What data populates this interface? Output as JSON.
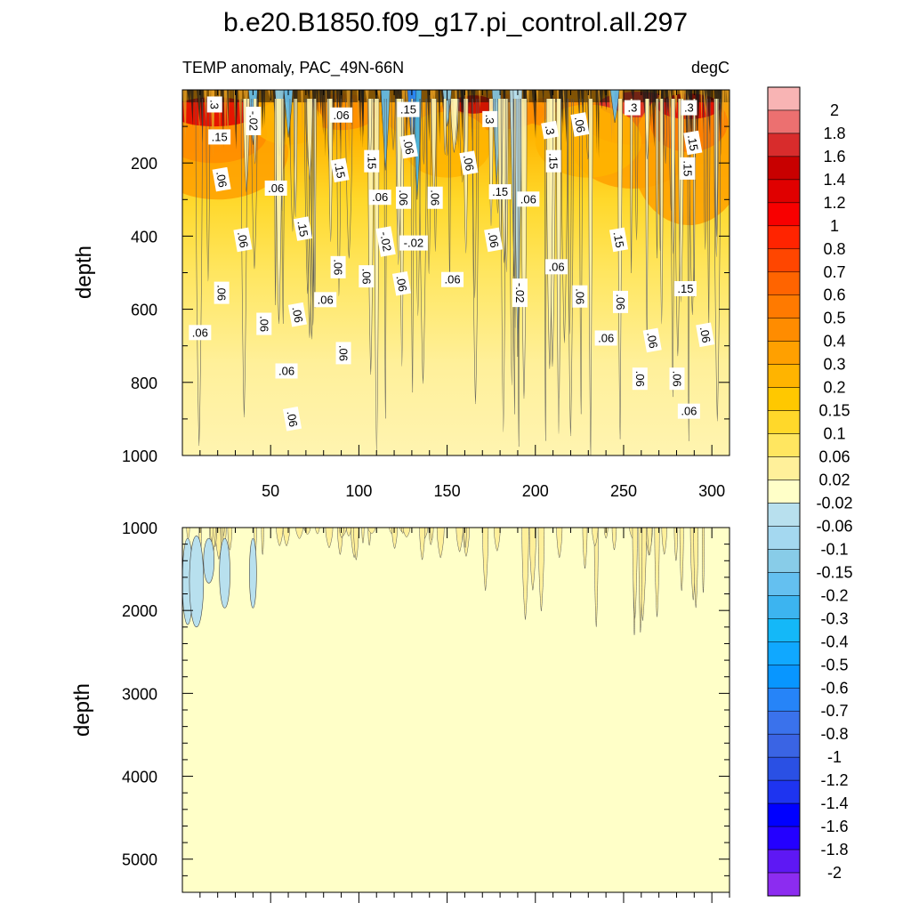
{
  "chart_data": {
    "type": "contour",
    "title": "b.e20.B1850.f09_g17.pi_control.all.297",
    "variable_label": "TEMP anomaly, PAC_49N-66N",
    "units": "degC",
    "colorbar_levels": [
      "2",
      "1.8",
      "1.6",
      "1.4",
      "1.2",
      "1",
      "0.8",
      "0.7",
      "0.6",
      "0.5",
      "0.4",
      "0.3",
      "0.2",
      "0.15",
      "0.1",
      "0.06",
      "0.02",
      "-0.02",
      "-0.06",
      "-0.1",
      "-0.15",
      "-0.2",
      "-0.3",
      "-0.4",
      "-0.5",
      "-0.6",
      "-0.7",
      "-0.8",
      "-1",
      "-1.2",
      "-1.4",
      "-1.6",
      "-1.8",
      "-2"
    ],
    "colorbar_colors": [
      "#f8b4b4",
      "#ec7070",
      "#d82c2c",
      "#c80000",
      "#e00000",
      "#f80000",
      "#ff2400",
      "#ff4600",
      "#ff6400",
      "#ff7a00",
      "#ff8c00",
      "#ffa000",
      "#ffb400",
      "#ffc800",
      "#ffd82a",
      "#ffe660",
      "#fff09a",
      "#ffffc8",
      "#b8e0ee",
      "#a4d8f0",
      "#88cce8",
      "#64c0f0",
      "#3cb4f0",
      "#14b8f8",
      "#10a8ff",
      "#0896ff",
      "#2684f8",
      "#3a72ec",
      "#3a64e4",
      "#2a50e4",
      "#1e34f0",
      "#0000ff",
      "#2400ff",
      "#5e18f4",
      "#8c2cf0"
    ],
    "panels": [
      {
        "name": "upper",
        "ylabel": "depth",
        "ylim": [
          0,
          1000
        ],
        "yticks": [
          "200",
          "400",
          "600",
          "800",
          "1000"
        ],
        "xlim": [
          0,
          310
        ],
        "xticks": [
          "50",
          "100",
          "150",
          "200",
          "250",
          "300"
        ],
        "contour_labels": [
          {
            "text": ".3",
            "x": 18,
            "y": 40
          },
          {
            "text": ".15",
            "x": 21,
            "y": 130
          },
          {
            "text": ".06",
            "x": 22,
            "y": 245
          },
          {
            "text": "-.02",
            "x": 40,
            "y": 85
          },
          {
            "text": ".06",
            "x": 53,
            "y": 270
          },
          {
            "text": ".06",
            "x": 34,
            "y": 410
          },
          {
            "text": ".06",
            "x": 22,
            "y": 555
          },
          {
            "text": ".06",
            "x": 10,
            "y": 665
          },
          {
            "text": ".15",
            "x": 68,
            "y": 380
          },
          {
            "text": ".06",
            "x": 88,
            "y": 485
          },
          {
            "text": ".06",
            "x": 81,
            "y": 575
          },
          {
            "text": ".06",
            "x": 65,
            "y": 615
          },
          {
            "text": ".06",
            "x": 46,
            "y": 640
          },
          {
            "text": ".06",
            "x": 59,
            "y": 770
          },
          {
            "text": ".06",
            "x": 62,
            "y": 900
          },
          {
            "text": ".06",
            "x": 91,
            "y": 720
          },
          {
            "text": ".06",
            "x": 90,
            "y": 70
          },
          {
            "text": ".15",
            "x": 89,
            "y": 220
          },
          {
            "text": ".15",
            "x": 107,
            "y": 195
          },
          {
            "text": ".06",
            "x": 112,
            "y": 295
          },
          {
            "text": "-.02",
            "x": 115,
            "y": 415
          },
          {
            "text": ".06",
            "x": 104,
            "y": 510
          },
          {
            "text": ".15",
            "x": 128,
            "y": 55
          },
          {
            "text": ".06",
            "x": 128,
            "y": 155
          },
          {
            "text": ".06",
            "x": 125,
            "y": 295
          },
          {
            "text": "-.02",
            "x": 131,
            "y": 420
          },
          {
            "text": ".06",
            "x": 124,
            "y": 530
          },
          {
            "text": ".06",
            "x": 143,
            "y": 295
          },
          {
            "text": ".06",
            "x": 153,
            "y": 520
          },
          {
            "text": ".06",
            "x": 162,
            "y": 200
          },
          {
            "text": ".3",
            "x": 174,
            "y": 80
          },
          {
            "text": ".15",
            "x": 180,
            "y": 280
          },
          {
            "text": ".06",
            "x": 176,
            "y": 410
          },
          {
            "text": "-.02",
            "x": 191,
            "y": 555
          },
          {
            "text": ".06",
            "x": 196,
            "y": 300
          },
          {
            "text": ".3",
            "x": 208,
            "y": 110
          },
          {
            "text": ".15",
            "x": 210,
            "y": 195
          },
          {
            "text": ".06",
            "x": 212,
            "y": 485
          },
          {
            "text": ".06",
            "x": 225,
            "y": 95
          },
          {
            "text": ".06",
            "x": 225,
            "y": 565
          },
          {
            "text": ".3",
            "x": 255,
            "y": 50
          },
          {
            "text": ".15",
            "x": 247,
            "y": 410
          },
          {
            "text": ".06",
            "x": 248,
            "y": 580
          },
          {
            "text": ".06",
            "x": 240,
            "y": 680
          },
          {
            "text": ".06",
            "x": 266,
            "y": 685
          },
          {
            "text": ".06",
            "x": 259,
            "y": 790
          },
          {
            "text": ".3",
            "x": 287,
            "y": 50
          },
          {
            "text": ".15",
            "x": 289,
            "y": 145
          },
          {
            "text": ".15",
            "x": 286,
            "y": 215
          },
          {
            "text": ".15",
            "x": 285,
            "y": 545
          },
          {
            "text": ".06",
            "x": 296,
            "y": 670
          },
          {
            "text": ".06",
            "x": 280,
            "y": 790
          },
          {
            "text": ".06",
            "x": 287,
            "y": 880
          }
        ]
      },
      {
        "name": "lower",
        "ylabel": "depth",
        "ylim": [
          1000,
          5400
        ],
        "yticks": [
          "1000",
          "2000",
          "3000",
          "4000",
          "5000"
        ],
        "xlim": [
          0,
          310
        ]
      }
    ]
  }
}
